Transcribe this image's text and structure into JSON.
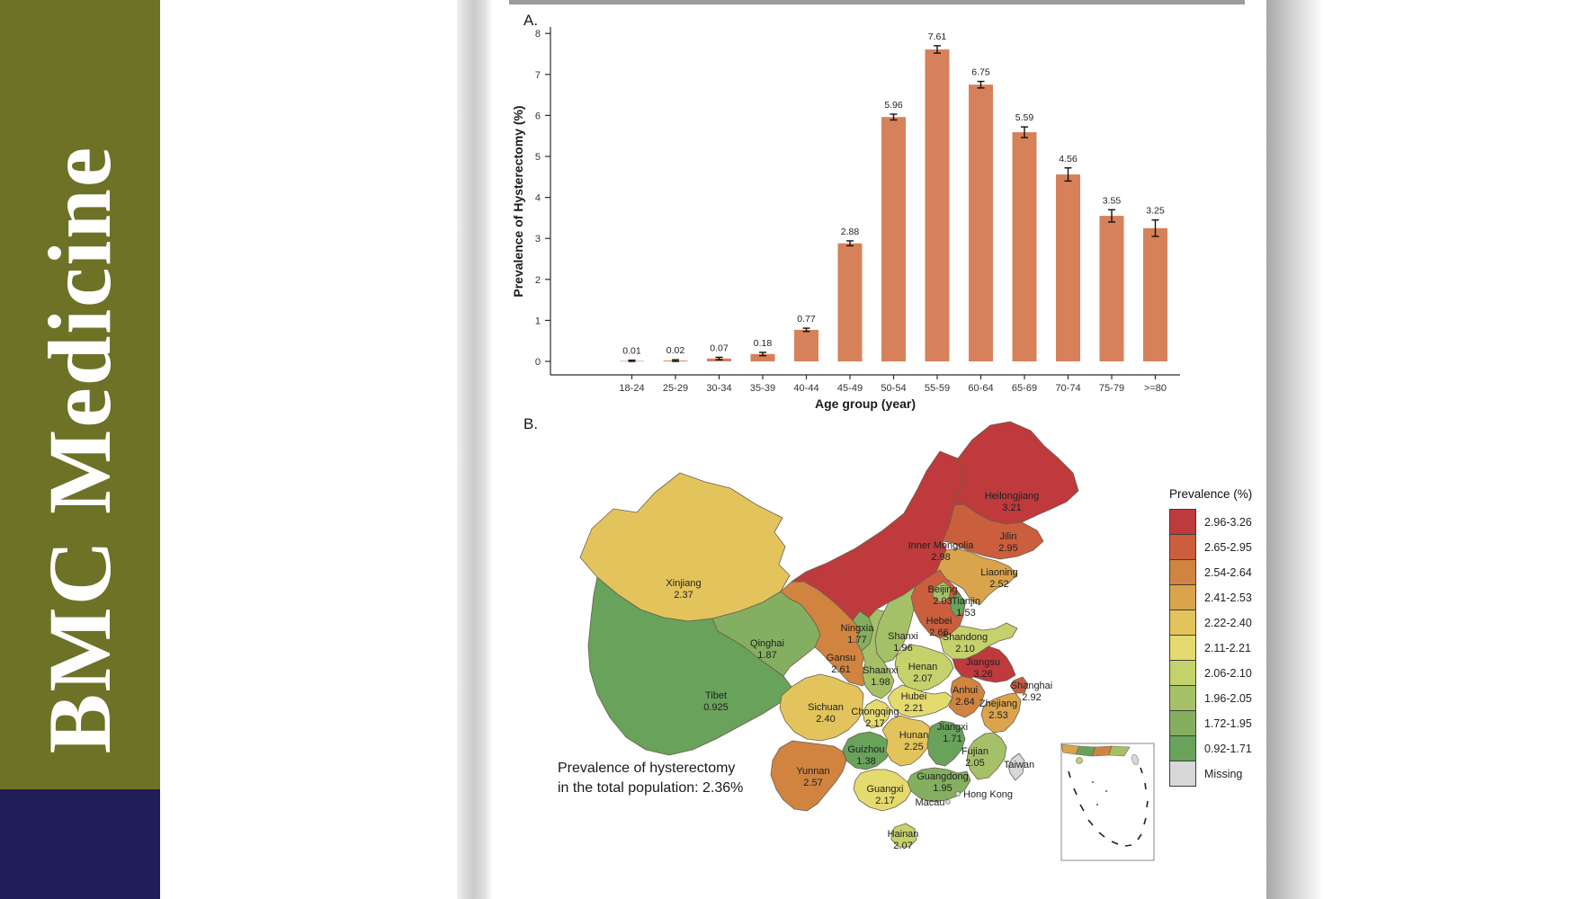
{
  "banner": {
    "journal_title": "BMC Medicine",
    "bg_color": "#6d7226",
    "footer_color": "#211d58"
  },
  "panels": {
    "a_label": "A.",
    "b_label": "B."
  },
  "chart_data": {
    "type": "bar",
    "title": "",
    "xlabel": "Age group (year)",
    "ylabel": "Prevalence of Hysterectomy (%)",
    "categories": [
      "18-24",
      "25-29",
      "30-34",
      "35-39",
      "40-44",
      "45-49",
      "50-54",
      "55-59",
      "60-64",
      "65-69",
      "70-74",
      "75-79",
      ">=80"
    ],
    "values": [
      0.01,
      0.02,
      0.07,
      0.18,
      0.77,
      2.88,
      5.96,
      7.61,
      6.75,
      5.59,
      4.56,
      3.55,
      3.25
    ],
    "value_labels": [
      "0.01",
      "0.02",
      "0.07",
      "0.18",
      "0.77",
      "2.88",
      "5.96",
      "7.61",
      "6.75",
      "5.59",
      "4.56",
      "3.55",
      "3.25"
    ],
    "errors": [
      0.02,
      0.02,
      0.03,
      0.04,
      0.04,
      0.06,
      0.07,
      0.09,
      0.08,
      0.13,
      0.16,
      0.15,
      0.2
    ],
    "ylim": [
      0,
      8
    ],
    "yticks": [
      0,
      1,
      2,
      3,
      4,
      5,
      6,
      7,
      8
    ],
    "bar_color": "#d6815a",
    "grid": false,
    "legend_position": "none"
  },
  "map": {
    "caption_line1": "Prevalence of hysterectomy",
    "caption_line2": "in the total population: 2.36%",
    "scale": [
      {
        "label": "2.96-3.26",
        "min": 2.96,
        "max": 3.26,
        "color": "#bf3a3d"
      },
      {
        "label": "2.65-2.95",
        "min": 2.65,
        "max": 2.95,
        "color": "#cb5f3d"
      },
      {
        "label": "2.54-2.64",
        "min": 2.54,
        "max": 2.64,
        "color": "#d0843f"
      },
      {
        "label": "2.41-2.53",
        "min": 2.41,
        "max": 2.53,
        "color": "#daa44c"
      },
      {
        "label": "2.22-2.40",
        "min": 2.22,
        "max": 2.4,
        "color": "#e3c45c"
      },
      {
        "label": "2.11-2.21",
        "min": 2.11,
        "max": 2.21,
        "color": "#e5da6e"
      },
      {
        "label": "2.06-2.10",
        "min": 2.06,
        "max": 2.1,
        "color": "#c5d26b"
      },
      {
        "label": "1.96-2.05",
        "min": 1.96,
        "max": 2.05,
        "color": "#a5c168"
      },
      {
        "label": "1.72-1.95",
        "min": 1.72,
        "max": 1.95,
        "color": "#84af60"
      },
      {
        "label": "0.92-1.71",
        "min": 0.92,
        "max": 1.71,
        "color": "#68a25b"
      },
      {
        "label": "Missing",
        "min": null,
        "max": null,
        "color": "#d8d8d8"
      }
    ],
    "provinces": [
      {
        "id": "xinjiang",
        "name": "Xinjiang",
        "value": "2.37"
      },
      {
        "id": "tibet",
        "name": "Tibet",
        "value": "0.925"
      },
      {
        "id": "qinghai",
        "name": "Qinghai",
        "value": "1.87"
      },
      {
        "id": "gansu",
        "name": "Gansu",
        "value": "2.61"
      },
      {
        "id": "inner_mongolia",
        "name": "Inner Mongolia",
        "value": "2.98"
      },
      {
        "id": "ningxia",
        "name": "Ningxia",
        "value": "1.77"
      },
      {
        "id": "heilongjiang",
        "name": "Heilongjiang",
        "value": "3.21"
      },
      {
        "id": "jilin",
        "name": "Jilin",
        "value": "2.95"
      },
      {
        "id": "liaoning",
        "name": "Liaoning",
        "value": "2.52"
      },
      {
        "id": "hebei",
        "name": "Hebei",
        "value": "2.66"
      },
      {
        "id": "beijing",
        "name": "Beijing",
        "value": "2.03"
      },
      {
        "id": "tianjin",
        "name": "Tianjin",
        "value": "1.53"
      },
      {
        "id": "shanxi",
        "name": "Shanxi",
        "value": "1.96"
      },
      {
        "id": "shandong",
        "name": "Shandong",
        "value": "2.10"
      },
      {
        "id": "henan",
        "name": "Henan",
        "value": "2.07"
      },
      {
        "id": "shaanxi",
        "name": "Shaanxi",
        "value": "1.98"
      },
      {
        "id": "hubei",
        "name": "Hubei",
        "value": "2.21"
      },
      {
        "id": "chongqing",
        "name": "Chongqing",
        "value": "2.17"
      },
      {
        "id": "sichuan",
        "name": "Sichuan",
        "value": "2.40"
      },
      {
        "id": "guizhou",
        "name": "Guizhou",
        "value": "1.38"
      },
      {
        "id": "yunnan",
        "name": "Yunnan",
        "value": "2.57"
      },
      {
        "id": "hunan",
        "name": "Hunan",
        "value": "2.25"
      },
      {
        "id": "jiangxi",
        "name": "Jiangxi",
        "value": "1.71"
      },
      {
        "id": "anhui",
        "name": "Anhui",
        "value": "2.64"
      },
      {
        "id": "jiangsu",
        "name": "Jiangsu",
        "value": "3.26"
      },
      {
        "id": "shanghai",
        "name": "Shanghai",
        "value": "2.92"
      },
      {
        "id": "zhejiang",
        "name": "Zhejiang",
        "value": "2.53"
      },
      {
        "id": "fujian",
        "name": "Fujian",
        "value": "2.05"
      },
      {
        "id": "guangdong",
        "name": "Guangdong",
        "value": "1.95"
      },
      {
        "id": "guangxi",
        "name": "Guangxi",
        "value": "2.17"
      },
      {
        "id": "hainan",
        "name": "Hainan",
        "value": "2.07"
      },
      {
        "id": "taiwan",
        "name": "Taiwan",
        "value": null
      },
      {
        "id": "hongkong",
        "name": "Hong Kong",
        "value": null
      },
      {
        "id": "macau",
        "name": "Macau",
        "value": null
      }
    ]
  },
  "legend": {
    "title": "Prevalence (%)"
  }
}
